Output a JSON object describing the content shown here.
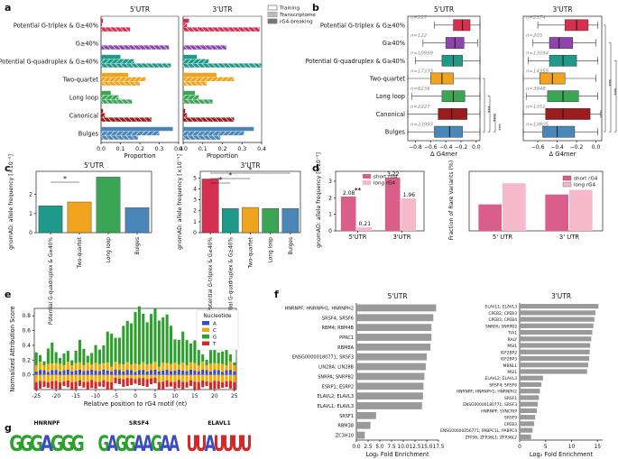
{
  "colors": {
    "triplex": "#d6304f",
    "g40": "#8e44ad",
    "quadruplex": "#1f9a8a",
    "twoquartet": "#f0a41e",
    "longloop": "#3aa655",
    "canonical": "#9b1c1c",
    "bulges": "#4a86b8",
    "short_rg4": "#d95f8a",
    "long_rg4": "#f6b8cb",
    "nt_A": "#3b4cc0",
    "nt_C": "#f2a900",
    "nt_G": "#2ca02c",
    "nt_T": "#d62728",
    "gray": "#9a9a9a"
  },
  "panel_a": {
    "letter": "a",
    "left_title": "5'UTR",
    "right_title": "3'UTR",
    "xlabel": "Proportion",
    "xticks": [
      "0.0",
      "0.1",
      "0.2",
      "0.3",
      "0.4"
    ],
    "legend": [
      "Training",
      "Transcriptome",
      "rG4-breaking"
    ],
    "categories": [
      "Potential G-triplex & G≥40%",
      "G≥40%",
      "Potential G-quadruplex & G≥40%",
      "Two-quartet",
      "Long loop",
      "Canonical",
      "Bulges"
    ]
  },
  "panel_b": {
    "letter": "b",
    "left_title": "5'UTR",
    "right_title": "3'UTR",
    "xlabel": "Δ G4mer",
    "left_xticks": [
      "−0.8",
      "−0.6",
      "−0.4",
      "−0.2",
      "0.0"
    ],
    "right_xticks": [
      "−0.6",
      "−0.4",
      "−0.2",
      "0.0"
    ],
    "left_n": [
      "n=227",
      "n=122",
      "n=10999",
      "n=17333",
      "n=6236",
      "n=2227",
      "n=23993"
    ],
    "right_n": [
      "n=2374",
      "n=203",
      "n=13094",
      "n=14355",
      "n=3948",
      "n=1351",
      "n=13805"
    ],
    "sig": "***"
  },
  "panel_c": {
    "letter": "c",
    "left_title": "5'UTR",
    "right_title": "3'UTR",
    "ylabel": "gnomAD: allele frequency [×10⁻⁵]",
    "left_xlabels": [
      "Potential G-quadruplex & G≥40%",
      "Two-quartet",
      "Long loop",
      "Bulges"
    ],
    "right_xlabels": [
      "Potential G-triplex & G≥40%",
      "Potential G-quadruplex & G≥40%",
      "Two-quartet",
      "Long loop",
      "Bulges"
    ],
    "left_yticks": [
      "0",
      "1",
      "2"
    ],
    "right_yticks": [
      "0",
      "1",
      "2",
      "3",
      "4",
      "5"
    ],
    "sig": "*"
  },
  "panel_d": {
    "letter": "d",
    "ylabel": "gnomAD: allele frequency [×10⁻⁵]",
    "legend": [
      "short rG4",
      "long rG4"
    ],
    "xlabels": [
      "5'UTR",
      "3'UTR"
    ],
    "value_labels": [
      "2.08",
      "0.21",
      "3.22",
      "1.96"
    ],
    "sig": "**",
    "yticks": [
      "0",
      "1",
      "2",
      "3"
    ],
    "right_ylabel": "Fraction of Rare Variants (%)",
    "right_xlabels": [
      "5' UTR",
      "3' UTR"
    ],
    "right_yticks": [
      "0",
      "20",
      "40",
      "60",
      "80"
    ],
    "right_legend": [
      "short rG4",
      "long rG4"
    ]
  },
  "panel_e": {
    "letter": "e",
    "ylabel": "Normalized Attribution Score",
    "xlabel": "Relative position to rG4 motif (nt)",
    "yticks": [
      "0.8",
      "0.6",
      "0.4",
      "0.2",
      "0.0"
    ],
    "xticks": [
      "-25",
      "-20",
      "-15",
      "-10",
      "-5",
      "0",
      "5",
      "10",
      "15",
      "20",
      "25"
    ],
    "legend_title": "Nucleotide",
    "legend": [
      "A",
      "C",
      "G",
      "T"
    ]
  },
  "panel_f": {
    "letter": "f",
    "left_title": "5'UTR",
    "right_title": "3'UTR",
    "xlabel": "Log₂ Fold Enrichment",
    "left_xticks": [
      "0.0",
      "2.5",
      "5.0",
      "7.5",
      "10.0",
      "12.5",
      "15.0",
      "17.5"
    ],
    "right_xticks": [
      "0",
      "5",
      "10",
      "15"
    ],
    "left_labels": [
      "HNRNPF; HNRNPH1; HNRNPH2",
      "SRSF4; SRSF6",
      "RBM4; RBM4B",
      "PPRC1",
      "RBM8A",
      "ENSG00000180771; SRSF3",
      "LIN28A; LIN28B",
      "SNRPA; SNRPB2",
      "ESRP1; ESRP2",
      "ELAVL2; ELAVL3",
      "ELAVL1; ELAVL3",
      "SRSF1",
      "RBM38",
      "ZC3H10"
    ],
    "right_labels": [
      "ELAVL1; ELAVL3",
      "CPEB2; CPEB3",
      "CPEB3; CPEB4",
      "SNRPA; SNRPB2",
      "TIA1",
      "RALY",
      "MSI1",
      "IGF2BP2",
      "IGF2BP3",
      "MBNL1",
      "MSI1",
      "ELAVL2; ELAVL3",
      "SRSF4; SRSF6",
      "HNRNPF; HNRNPH1; HNRNPH2",
      "SRSF1",
      "ENSG00000180771; SRSF3",
      "HNRNPF; SYNCRIP",
      "SRSF9",
      "CPEB3",
      "ENSG00000256771; PABPC1L; PABPC4",
      "ZFP36; ZFP36L1; ZFP36L2"
    ]
  },
  "panel_g": {
    "letter": "g",
    "motifs": [
      {
        "label": "HNRNPF",
        "seq": "GGGAGGG"
      },
      {
        "label": "SRSF4",
        "seq": "GAGGAAGAA"
      },
      {
        "label": "ELAVL1",
        "seq": "UUAUUUU"
      }
    ]
  },
  "chart_data": [
    {
      "type": "bar",
      "panel": "a-5UTR",
      "categories": [
        "Potential G-triplex & G≥40%",
        "G≥40%",
        "Potential G-quadruplex & G≥40%",
        "Two-quartet",
        "Long loop",
        "Canonical",
        "Bulges"
      ],
      "series": [
        {
          "name": "Training",
          "values": [
            0.01,
            0.0,
            0.1,
            0.14,
            0.05,
            0.01,
            0.37
          ]
        },
        {
          "name": "Transcriptome",
          "values": [
            0.005,
            0.0,
            0.17,
            0.23,
            0.09,
            0.02,
            0.3
          ]
        },
        {
          "name": "rG4-breaking",
          "values": [
            0.15,
            0.35,
            0.36,
            0.2,
            0.16,
            0.26,
            0.19
          ]
        }
      ],
      "xlim": [
        0,
        0.4
      ]
    },
    {
      "type": "bar",
      "panel": "a-3UTR",
      "categories": [
        "Potential G-triplex & G≥40%",
        "G≥40%",
        "Potential G-quadruplex & G≥40%",
        "Two-quartet",
        "Long loop",
        "Canonical",
        "Bulges"
      ],
      "series": [
        {
          "name": "Training",
          "values": [
            0.03,
            0.0,
            0.07,
            0.17,
            0.06,
            0.01,
            0.36
          ]
        },
        {
          "name": "Transcriptome",
          "values": [
            0.02,
            0.0,
            0.13,
            0.26,
            0.08,
            0.02,
            0.31
          ]
        },
        {
          "name": "rG4-breaking",
          "values": [
            0.39,
            0.22,
            0.4,
            0.12,
            0.15,
            0.26,
            0.19
          ]
        }
      ],
      "xlim": [
        0,
        0.4
      ]
    },
    {
      "type": "box",
      "panel": "b-5UTR",
      "categories": [
        "Potential G-triplex & G≥40%",
        "G≥40%",
        "Potential G-quadruplex & G≥40%",
        "Two-quartet",
        "Long loop",
        "Canonical",
        "Bulges"
      ],
      "boxes": [
        {
          "q1": -0.3,
          "med": -0.18,
          "q3": -0.08,
          "wlo": -0.55,
          "whi": 0.05
        },
        {
          "q1": -0.4,
          "med": -0.28,
          "q3": -0.16,
          "wlo": -0.7,
          "whi": 0.02
        },
        {
          "q1": -0.45,
          "med": -0.3,
          "q3": -0.18,
          "wlo": -0.8,
          "whi": 0.05
        },
        {
          "q1": -0.6,
          "med": -0.45,
          "q3": -0.3,
          "wlo": -0.9,
          "whi": 0.05
        },
        {
          "q1": -0.45,
          "med": -0.3,
          "q3": -0.15,
          "wlo": -0.85,
          "whi": 0.05
        },
        {
          "q1": -0.5,
          "med": -0.32,
          "q3": -0.12,
          "wlo": -0.9,
          "whi": 0.05
        },
        {
          "q1": -0.55,
          "med": -0.35,
          "q3": -0.18,
          "wlo": -0.9,
          "whi": 0.05
        }
      ],
      "xlim": [
        -0.9,
        0.05
      ]
    },
    {
      "type": "box",
      "panel": "b-3UTR",
      "categories": [
        "Potential G-triplex & G≥40%",
        "G≥40%",
        "Potential G-quadruplex & G≥40%",
        "Two-quartet",
        "Long loop",
        "Canonical",
        "Bulges"
      ],
      "boxes": [
        {
          "q1": -0.32,
          "med": -0.2,
          "q3": -0.08,
          "wlo": -0.6,
          "whi": 0.02
        },
        {
          "q1": -0.48,
          "med": -0.38,
          "q3": -0.24,
          "wlo": -0.65,
          "whi": 0.0
        },
        {
          "q1": -0.48,
          "med": -0.34,
          "q3": -0.2,
          "wlo": -0.7,
          "whi": 0.02
        },
        {
          "q1": -0.58,
          "med": -0.45,
          "q3": -0.32,
          "wlo": -0.75,
          "whi": 0.0
        },
        {
          "q1": -0.5,
          "med": -0.34,
          "q3": -0.18,
          "wlo": -0.72,
          "whi": 0.02
        },
        {
          "q1": -0.52,
          "med": -0.34,
          "q3": -0.06,
          "wlo": -0.75,
          "whi": 0.05
        },
        {
          "q1": -0.55,
          "med": -0.4,
          "q3": -0.22,
          "wlo": -0.75,
          "whi": 0.02
        }
      ],
      "xlim": [
        -0.75,
        0.06
      ]
    },
    {
      "type": "bar",
      "panel": "c-5UTR",
      "categories": [
        "Potential G-quadruplex & G≥40%",
        "Two-quartet",
        "Long loop",
        "Bulges"
      ],
      "values": [
        1.4,
        1.6,
        2.9,
        1.3
      ],
      "ylim": [
        0,
        3.2
      ]
    },
    {
      "type": "bar",
      "panel": "c-3UTR",
      "categories": [
        "Potential G-triplex & G≥40%",
        "Potential G-quadruplex & G≥40%",
        "Two-quartet",
        "Long loop",
        "Bulges"
      ],
      "values": [
        4.9,
        2.2,
        2.3,
        2.2,
        2.2
      ],
      "ylim": [
        0,
        5.6
      ]
    },
    {
      "type": "bar",
      "panel": "d-left",
      "categories": [
        "5'UTR",
        "3'UTR"
      ],
      "series": [
        {
          "name": "short rG4",
          "values": [
            2.08,
            3.22
          ]
        },
        {
          "name": "long rG4",
          "values": [
            0.21,
            1.96
          ]
        }
      ],
      "ylim": [
        0,
        3.6
      ]
    },
    {
      "type": "bar",
      "panel": "d-right",
      "categories": [
        "5' UTR",
        "3' UTR"
      ],
      "series": [
        {
          "name": "short rG4",
          "values": [
            40,
            55
          ]
        },
        {
          "name": "long rG4",
          "values": [
            72,
            62
          ]
        }
      ],
      "ylim": [
        0,
        90
      ]
    },
    {
      "type": "bar",
      "panel": "e",
      "x_range": [
        -25,
        25
      ],
      "ylim": [
        -0.2,
        0.9
      ],
      "series_note": "stacked nucleotide attribution per position"
    },
    {
      "type": "bar",
      "panel": "f-5UTR",
      "categories": [
        "HNRNPF; HNRNPH1; HNRNPH2",
        "SRSF4; SRSF6",
        "RBM4; RBM4B",
        "PPRC1",
        "RBM8A",
        "ENSG00000180771; SRSF3",
        "LIN28A; LIN28B",
        "SNRPA; SNRPB2",
        "ESRP1; ESRP2",
        "ELAVL2; ELAVL3",
        "ELAVL1; ELAVL3",
        "SRSF1",
        "RBM38",
        "ZC3H10"
      ],
      "values": [
        17.0,
        16.4,
        16.0,
        16.0,
        15.8,
        15.0,
        14.8,
        14.5,
        14.3,
        14.2,
        14.0,
        4.2,
        3.0,
        1.8
      ],
      "xlim": [
        0,
        17.5
      ]
    },
    {
      "type": "bar",
      "panel": "f-3UTR",
      "categories": [
        "ELAVL1; ELAVL3",
        "CPEB2; CPEB3",
        "CPEB3; CPEB4",
        "SNRPA; SNRPB2",
        "TIA1",
        "RALY",
        "MSI1",
        "IGF2BP2",
        "IGF2BP3",
        "MBNL1",
        "MSI1",
        "ELAVL2; ELAVL3",
        "SRSF4; SRSF6",
        "HNRNPF; HNRNPH1; HNRNPH2",
        "SRSF1",
        "ENSG00000180771; SRSF3",
        "HNRNPF; SYNCRIP",
        "SRSF9",
        "CPEB3",
        "ENSG00000256771; PABPC1L; PABPC4",
        "ZFP36; ZFP36L1; ZFP36L2"
      ],
      "values": [
        15.2,
        14.6,
        14.4,
        14.2,
        14.0,
        13.8,
        13.6,
        13.5,
        13.4,
        13.2,
        13.0,
        4.5,
        4.2,
        3.9,
        3.7,
        3.5,
        3.3,
        3.0,
        2.8,
        2.5,
        2.2
      ],
      "xlim": [
        0,
        16
      ]
    }
  ]
}
